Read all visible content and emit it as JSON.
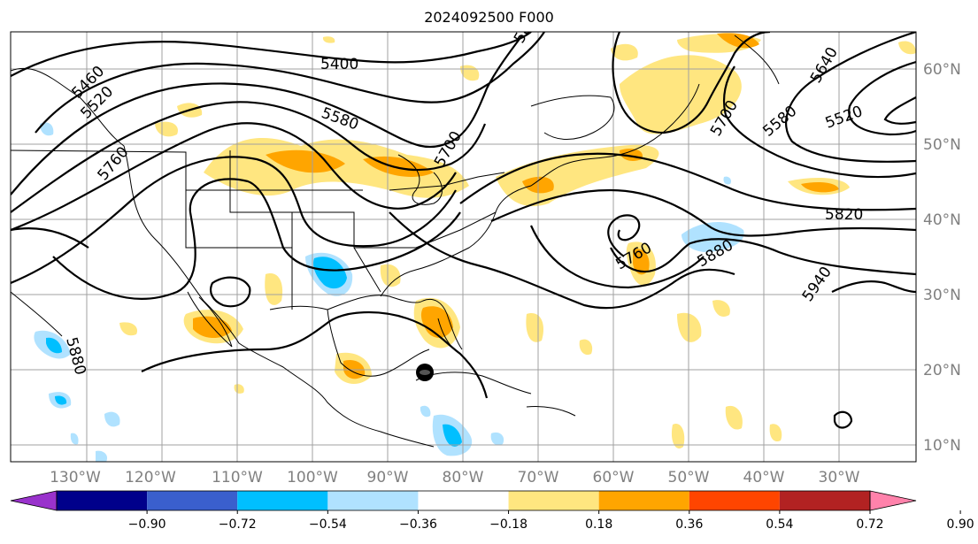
{
  "title": "2024092500 F000",
  "lon_labels": [
    "130°W",
    "120°W",
    "110°W",
    "100°W",
    "90°W",
    "80°W",
    "70°W",
    "60°W",
    "50°W",
    "40°W",
    "30°W"
  ],
  "lat_labels": [
    "60°N",
    "50°N",
    "40°N",
    "30°N",
    "20°N",
    "10°N"
  ],
  "contour_labels": [
    "5400",
    "5460",
    "5520",
    "5580",
    "5640",
    "5700",
    "5760",
    "5820",
    "5880",
    "5940",
    "5580",
    "5520",
    "5700",
    "5760",
    "5880",
    "5880"
  ],
  "colorbar": {
    "tick_labels": [
      "−0.90",
      "−0.72",
      "−0.54",
      "−0.36",
      "−0.18",
      "0.18",
      "0.36",
      "0.54",
      "0.72",
      "0.90"
    ],
    "colors": [
      "#9932cc",
      "#00008b",
      "#3a5fcd",
      "#00bfff",
      "#b0e2ff",
      "#ffffff",
      "#ffe680",
      "#ffa500",
      "#ff4500",
      "#b22222",
      "#ff82ab"
    ]
  }
}
